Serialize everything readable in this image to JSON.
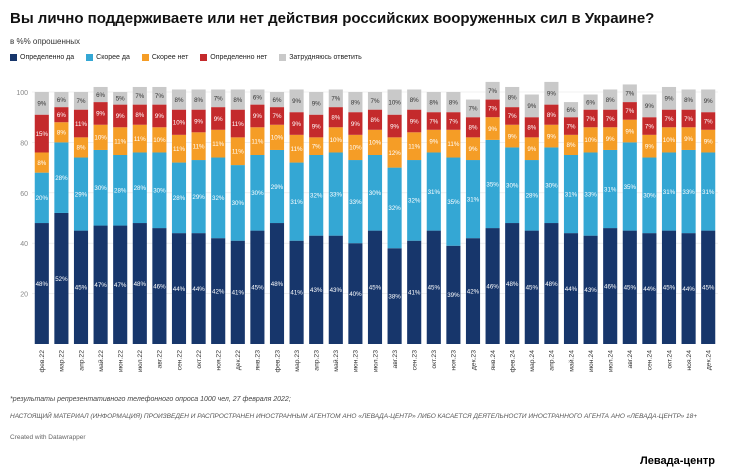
{
  "chart_data": {
    "type": "bar",
    "stacked": true,
    "title": "Вы лично поддерживаете или нет действия российских вооруженных сил в Украине?",
    "subtitle": "в %% опрошенных",
    "ylim": [
      0,
      100
    ],
    "yticks": [
      20,
      40,
      60,
      80,
      100
    ],
    "categories": [
      "фев.22",
      "мар.22",
      "апр.22",
      "май.22",
      "июн.22",
      "июл.22",
      "авг.22",
      "сен.22",
      "окт.22",
      "ноя.22",
      "дек.22",
      "янв.23",
      "фев.23",
      "мар.23",
      "апр.23",
      "май.23",
      "июн.23",
      "июл.23",
      "авг.23",
      "сен.23",
      "окт.23",
      "ноя.23",
      "дек.23",
      "янв.24",
      "фев.24",
      "мар.24",
      "апр.24",
      "май.24",
      "июн.24",
      "июл.24",
      "авг.24",
      "сен.24",
      "окт.24",
      "ноя.24",
      "дек.24"
    ],
    "series": [
      {
        "name": "Определенно да",
        "color": "#17366b",
        "values": [
          48,
          52,
          45,
          47,
          47,
          48,
          46,
          44,
          44,
          42,
          41,
          45,
          48,
          41,
          43,
          43,
          40,
          45,
          38,
          41,
          45,
          39,
          42,
          46,
          48,
          45,
          48,
          44,
          43,
          46,
          45,
          44,
          45,
          44,
          45
        ]
      },
      {
        "name": "Скорее да",
        "color": "#34a7d4",
        "values": [
          20,
          28,
          29,
          30,
          28,
          28,
          30,
          28,
          29,
          32,
          30,
          30,
          29,
          31,
          32,
          33,
          33,
          30,
          32,
          32,
          31,
          35,
          31,
          35,
          30,
          28,
          30,
          31,
          33,
          31,
          35,
          30,
          31,
          33,
          31
        ]
      },
      {
        "name": "Скорее нет",
        "color": "#f59d26",
        "values": [
          8,
          8,
          8,
          10,
          11,
          11,
          10,
          11,
          11,
          11,
          11,
          11,
          10,
          11,
          7,
          10,
          10,
          10,
          12,
          11,
          9,
          11,
          9,
          9,
          9,
          9,
          9,
          8,
          10,
          9,
          9,
          9,
          10,
          9,
          9
        ]
      },
      {
        "name": "Определенно нет",
        "color": "#c42a2c",
        "values": [
          15,
          6,
          11,
          9,
          9,
          8,
          9,
          10,
          9,
          9,
          11,
          9,
          7,
          9,
          9,
          8,
          9,
          8,
          9,
          9,
          7,
          7,
          8,
          7,
          7,
          8,
          8,
          7,
          7,
          7,
          7,
          7,
          7,
          7,
          7
        ]
      },
      {
        "name": "Затрудняюсь ответить",
        "color": "#c9c9c9",
        "values": [
          9,
          6,
          7,
          6,
          5,
          7,
          7,
          8,
          8,
          7,
          8,
          6,
          6,
          9,
          9,
          7,
          8,
          7,
          10,
          8,
          8,
          8,
          7,
          7,
          8,
          9,
          9,
          6,
          6,
          8,
          7,
          9,
          9,
          8,
          9
        ]
      }
    ]
  },
  "legend_title": "",
  "note": "*результаты репрезентативного телефонного опроса 1000 чел, 27 февраля 2022;",
  "disclaimer": "НАСТОЯЩИЙ МАТЕРИАЛ (ИНФОРМАЦИЯ) ПРОИЗВЕДЕН И РАСПРОСТРАНЕН ИНОСТРАННЫМ АГЕНТОМ АНО «ЛЕВАДА-ЦЕНТР» ЛИБО КАСАЕТСЯ ДЕЯТЕЛЬНОСТИ ИНОСТРАННОГО АГЕНТА АНО «ЛЕВАДА-ЦЕНТР» 18+",
  "credit": "Created with Datawrapper",
  "source": "Левада-центр"
}
